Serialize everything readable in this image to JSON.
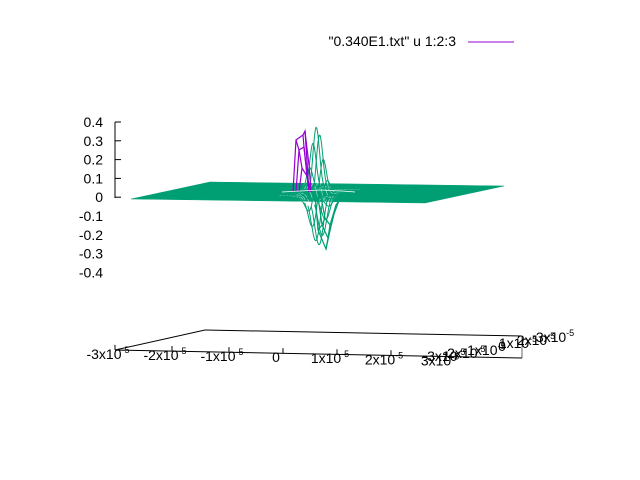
{
  "chart_data": {
    "type": "surface3d",
    "title": "",
    "legend": {
      "label": "\"0.340E1.txt\" u 1:2:3",
      "placement": "top-right",
      "color": "#9400d3"
    },
    "z_axis": {
      "ticks": [
        "0.4",
        "0.3",
        "0.2",
        "0.1",
        "0",
        "-0.1",
        "-0.2",
        "-0.3",
        "-0.4"
      ],
      "range": [
        -0.4,
        0.4
      ]
    },
    "x_axis": {
      "ticks": [
        {
          "m": "-3x10",
          "e": "-5"
        },
        {
          "m": "-2x10",
          "e": "-5"
        },
        {
          "m": "-1x10",
          "e": "-5"
        },
        {
          "m": "0",
          "e": ""
        },
        {
          "m": "1x10",
          "e": "-5"
        },
        {
          "m": "2x10",
          "e": "-5"
        },
        {
          "m": "3x10",
          "e": "-5"
        }
      ],
      "range": [
        -3e-05,
        3e-05
      ]
    },
    "y_axis": {
      "ticks": [
        {
          "m": "-3x10",
          "e": "-5"
        },
        {
          "m": "-2x10",
          "e": "-5"
        },
        {
          "m": "-1x10",
          "e": "-5"
        },
        {
          "m": "0",
          "e": ""
        },
        {
          "m": "1x10",
          "e": "-5"
        },
        {
          "m": "2x10",
          "e": "-5"
        },
        {
          "m": "3x10",
          "e": "-5"
        }
      ],
      "range": [
        -3e-05,
        3e-05
      ]
    },
    "surface": {
      "base_value": 0,
      "positive_color": "#9400d3",
      "negative_color": "#009e73",
      "peak_max": 0.35,
      "trough_min": -0.27
    },
    "grid": false
  }
}
